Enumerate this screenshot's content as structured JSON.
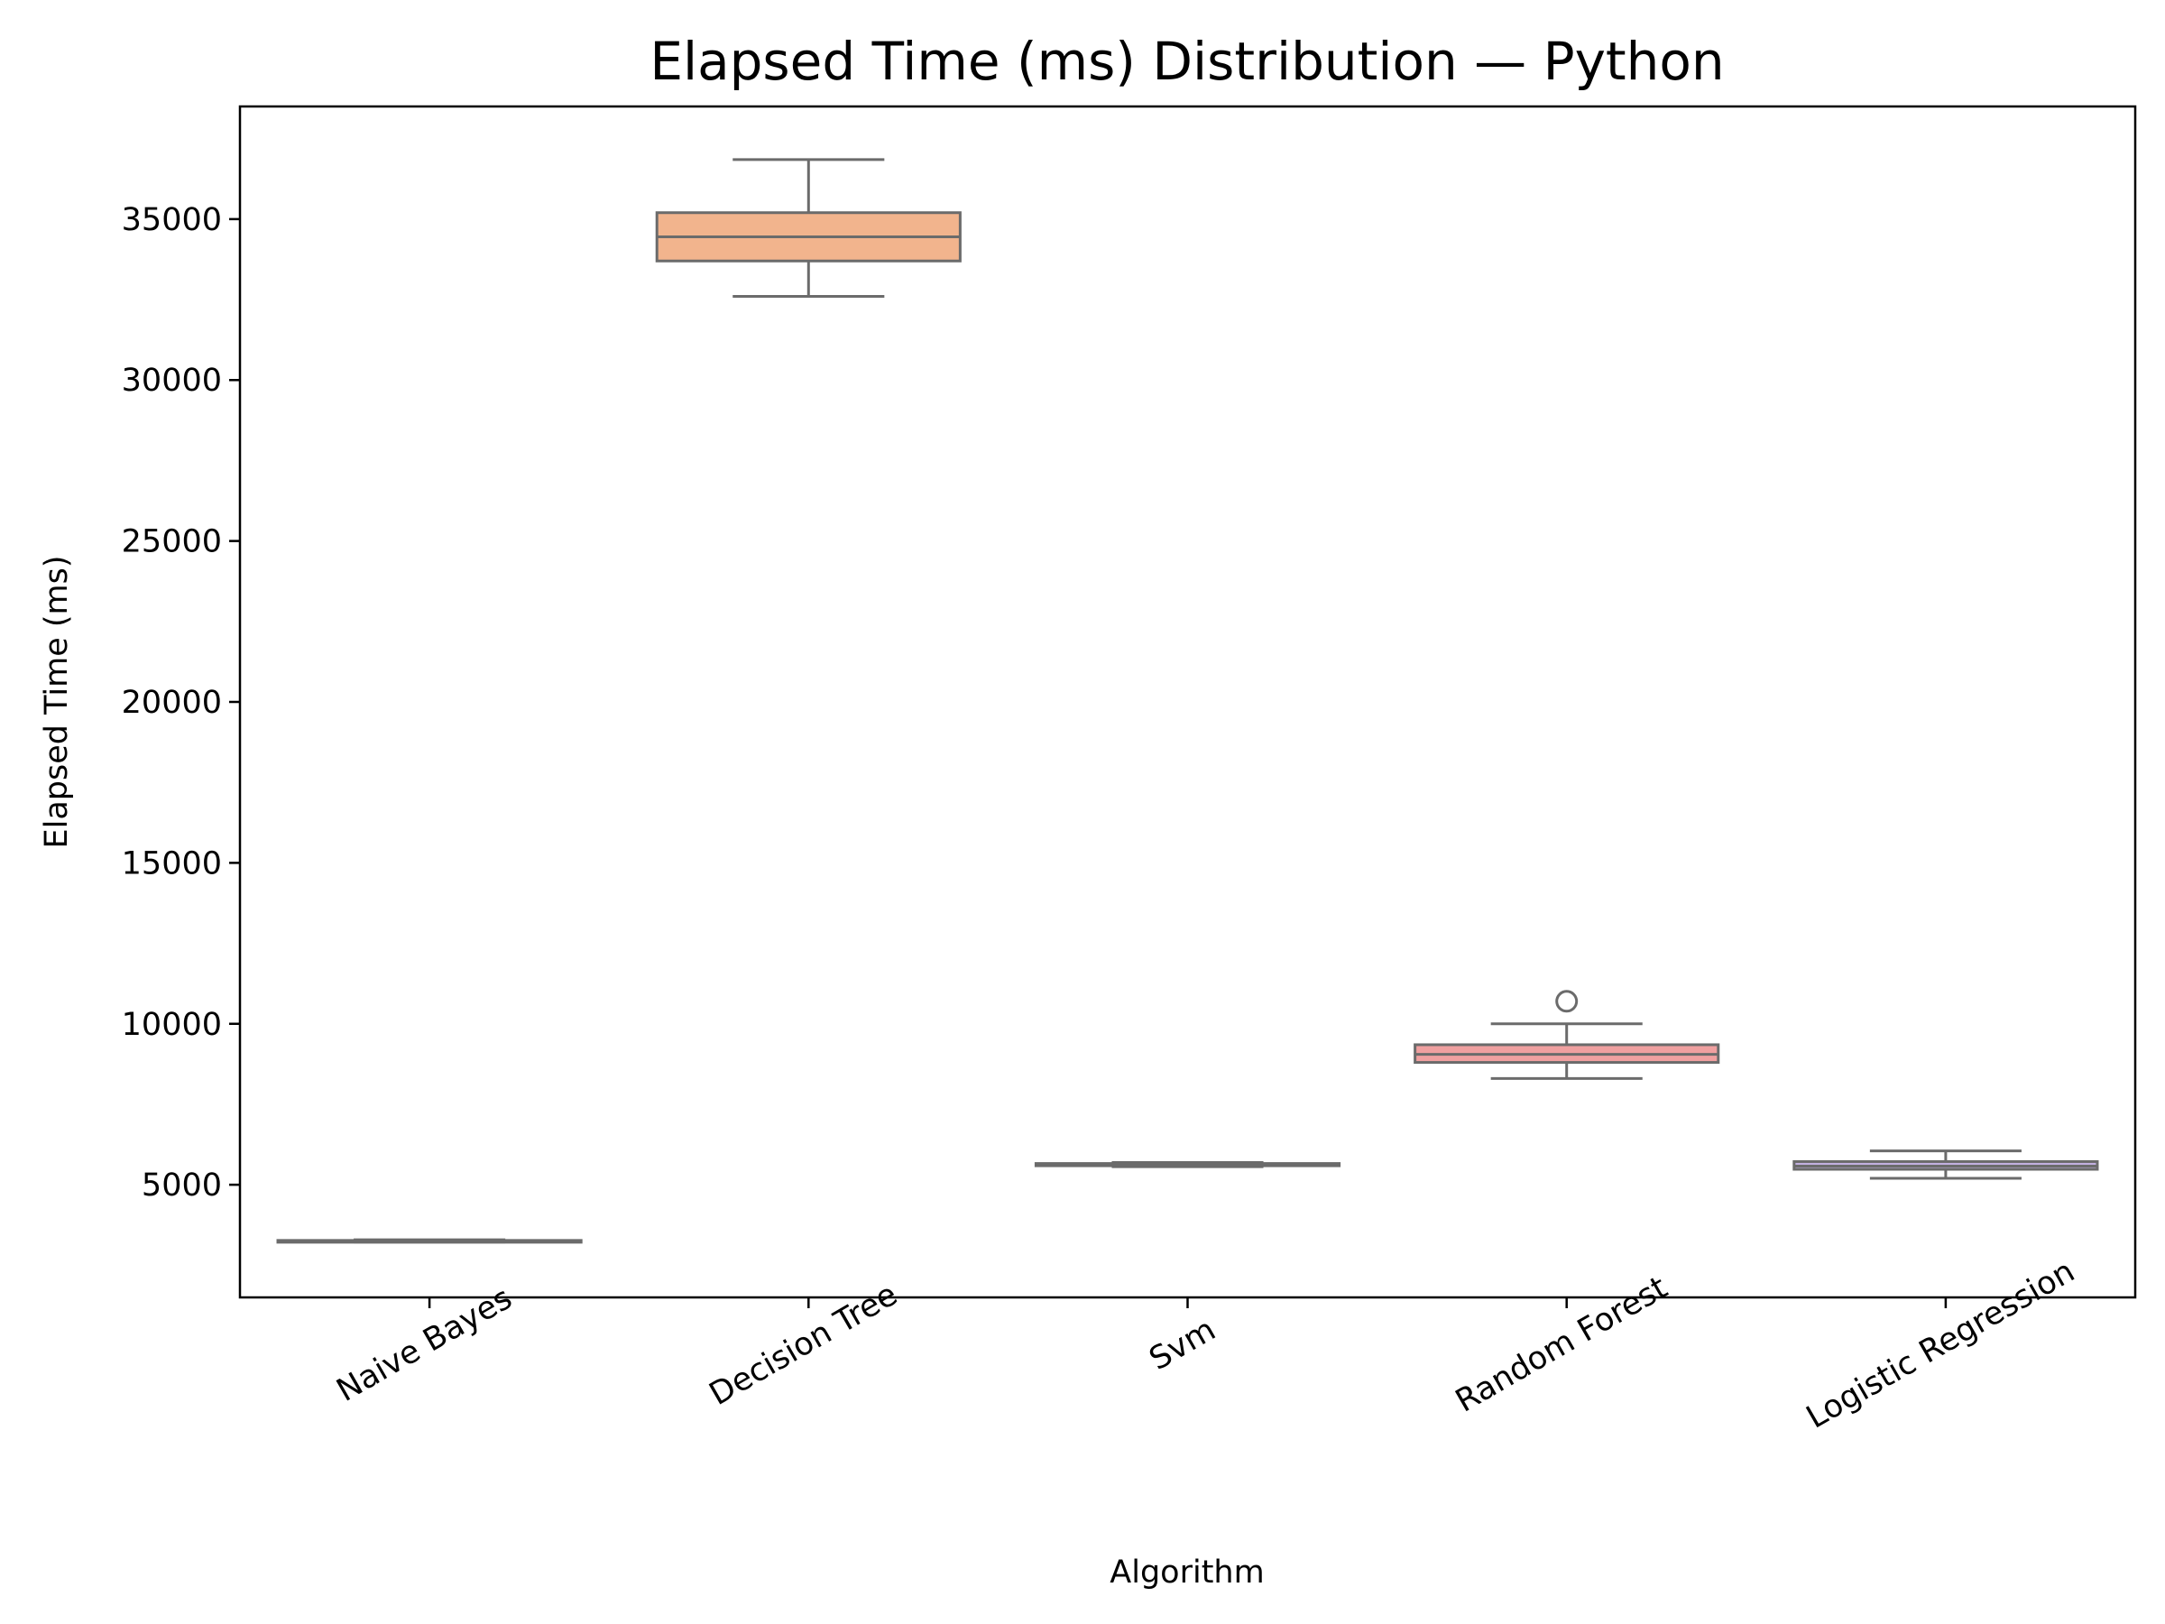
{
  "chart_data": {
    "type": "box",
    "title": "Elapsed Time (ms) Distribution — Python",
    "xlabel": "Algorithm",
    "ylabel": "Elapsed Time (ms)",
    "ylim": [
      1500,
      38500
    ],
    "yticks": [
      5000,
      10000,
      15000,
      20000,
      25000,
      30000,
      35000
    ],
    "ytick_labels": [
      "5000",
      "10000",
      "15000",
      "20000",
      "25000",
      "30000",
      "35000"
    ],
    "grid": false,
    "legend": "none",
    "categories": [
      "Naive Bayes",
      "Decision Tree",
      "Svm",
      "Random Forest",
      "Logistic Regression"
    ],
    "boxes": [
      {
        "category": "Naive Bayes",
        "whisker_low": 3220,
        "q1": 3240,
        "median": 3255,
        "q3": 3270,
        "whisker_high": 3290,
        "outliers": [],
        "color": "#8fb0d8"
      },
      {
        "category": "Decision Tree",
        "whisker_low": 32600,
        "q1": 33700,
        "median": 34450,
        "q3": 35200,
        "whisker_high": 36850,
        "outliers": [],
        "color": "#f2b48d"
      },
      {
        "category": "Svm",
        "whisker_low": 5560,
        "q1": 5590,
        "median": 5620,
        "q3": 5660,
        "whisker_high": 5690,
        "outliers": [],
        "color": "#9fd69f"
      },
      {
        "category": "Random Forest",
        "whisker_low": 8300,
        "q1": 8800,
        "median": 9050,
        "q3": 9350,
        "whisker_high": 10000,
        "outliers": [
          10700
        ],
        "color": "#f0a0a0"
      },
      {
        "category": "Logistic Regression",
        "whisker_low": 5200,
        "q1": 5480,
        "median": 5580,
        "q3": 5720,
        "whisker_high": 6050,
        "outliers": [],
        "color": "#c2b0e0"
      }
    ],
    "line_color": "#6b6b6b"
  }
}
